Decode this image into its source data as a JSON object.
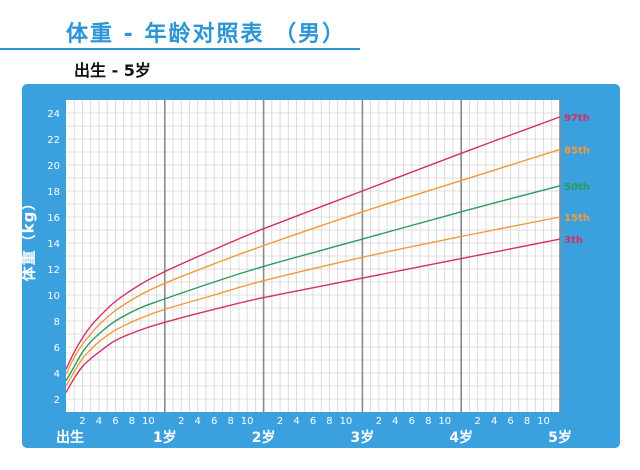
{
  "header": {
    "title": "体重 - 年龄对照表 （男）",
    "subtitle": "出生 - 5岁"
  },
  "colors": {
    "accent": "#2b95d6",
    "frame": "#3ba0de",
    "p97": "#d1306a",
    "p85": "#ee9b3a",
    "p50": "#2f9a5c",
    "p15": "#ee9b3a",
    "p3": "#d1306a"
  },
  "chart_data": {
    "type": "line",
    "title": "体重 - 年龄对照表 （男）",
    "subtitle": "出生 - 5岁",
    "xlabel": "",
    "ylabel": "体重（kg）",
    "x_unit": "month",
    "xlim": [
      0,
      60
    ],
    "ylim": [
      1,
      25
    ],
    "yticks": [
      2,
      4,
      6,
      8,
      10,
      12,
      14,
      16,
      18,
      20,
      22,
      24
    ],
    "x_major_ticks": [
      {
        "x": 0,
        "label": "出生"
      },
      {
        "x": 12,
        "label": "1岁"
      },
      {
        "x": 24,
        "label": "2岁"
      },
      {
        "x": 36,
        "label": "3岁"
      },
      {
        "x": 48,
        "label": "4岁"
      },
      {
        "x": 60,
        "label": "5岁"
      }
    ],
    "x_minor_labels": [
      "2",
      "4",
      "6",
      "8",
      "10"
    ],
    "grid": true,
    "legend": "line-end labels at right",
    "series": [
      {
        "name": "97th",
        "color_key": "p97",
        "x": [
          0,
          1,
          2,
          3,
          4,
          6,
          9,
          12,
          18,
          24,
          36,
          48,
          60
        ],
        "values": [
          4.3,
          5.6,
          6.7,
          7.6,
          8.3,
          9.5,
          10.8,
          11.8,
          13.5,
          15.1,
          18.0,
          20.9,
          23.7
        ]
      },
      {
        "name": "85th",
        "color_key": "p85",
        "x": [
          0,
          1,
          2,
          3,
          4,
          6,
          9,
          12,
          18,
          24,
          36,
          48,
          60
        ],
        "values": [
          3.9,
          5.2,
          6.2,
          7.0,
          7.7,
          8.8,
          10.0,
          10.9,
          12.4,
          13.8,
          16.4,
          18.8,
          21.2
        ]
      },
      {
        "name": "50th",
        "color_key": "p50",
        "x": [
          0,
          1,
          2,
          3,
          4,
          6,
          9,
          12,
          18,
          24,
          36,
          48,
          60
        ],
        "values": [
          3.4,
          4.5,
          5.6,
          6.4,
          7.0,
          8.0,
          9.0,
          9.7,
          11.0,
          12.2,
          14.3,
          16.4,
          18.4
        ]
      },
      {
        "name": "15th",
        "color_key": "p15",
        "x": [
          0,
          1,
          2,
          3,
          4,
          6,
          9,
          12,
          18,
          24,
          36,
          48,
          60
        ],
        "values": [
          3.0,
          4.1,
          5.1,
          5.8,
          6.4,
          7.3,
          8.2,
          8.9,
          10.0,
          11.1,
          12.9,
          14.5,
          16.0
        ]
      },
      {
        "name": "3th",
        "color_key": "p3",
        "x": [
          0,
          1,
          2,
          3,
          4,
          6,
          9,
          12,
          18,
          24,
          36,
          48,
          60
        ],
        "values": [
          2.5,
          3.6,
          4.5,
          5.1,
          5.6,
          6.5,
          7.3,
          7.9,
          8.9,
          9.8,
          11.3,
          12.8,
          14.3
        ]
      }
    ]
  }
}
